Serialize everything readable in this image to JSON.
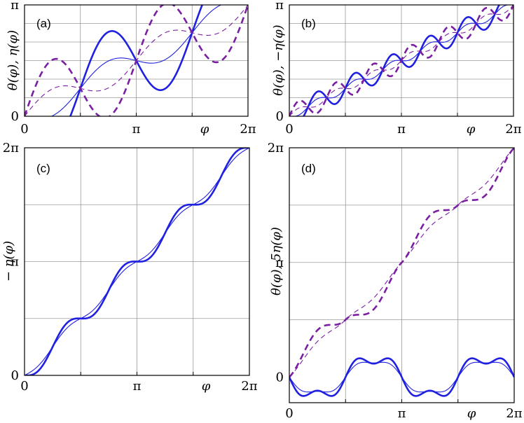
{
  "colors": {
    "blue": "#2020e0",
    "purple": "#7b1fa2",
    "grid": "#9a9a9a"
  },
  "chart_data": [
    {
      "panel": "(a)",
      "type": "line",
      "ylabel": "θ(φ), η(φ)",
      "xlabel": "φ",
      "xlim": [
        0,
        6.2832
      ],
      "ylim": [
        0,
        3.1416
      ],
      "x_ticks": [
        {
          "v": 0,
          "label": "0"
        },
        {
          "v": 3.1416,
          "label": "π"
        },
        {
          "v": 6.2832,
          "label": "2π"
        }
      ],
      "y_ticks": [
        {
          "v": 0,
          "label": "0"
        },
        {
          "v": 3.1416,
          "label": "π"
        }
      ],
      "x_grid": [
        1.5708,
        3.1416,
        4.7124
      ],
      "y_grid": [
        0.5236,
        1.0472,
        1.5708,
        2.0944,
        2.618
      ],
      "series": [
        {
          "name": "η thick",
          "color": "blue",
          "width": 2.6,
          "dash": "",
          "fn": "sin",
          "x": [
            0,
            3.1416,
            6.2832
          ],
          "y": [
            0,
            1.5708,
            3.1416
          ],
          "a": -1.2,
          "k": 2,
          "p": 0,
          "q": 0
        },
        {
          "name": "η thin",
          "color": "blue",
          "width": 1.1,
          "dash": "",
          "fn": "sin",
          "x": [
            0,
            3.1416,
            6.2832
          ],
          "y": [
            0,
            1.5708,
            3.1416
          ],
          "a": -0.38,
          "k": 2,
          "p": 0,
          "q": 0
        },
        {
          "name": "θ thick dashed",
          "color": "purple",
          "width": 2.6,
          "dash": "9,6",
          "fn": "sin",
          "x": [
            0,
            3.1416,
            6.2832
          ],
          "y": [
            0,
            1.5708,
            3.1416
          ],
          "a": 1.2,
          "k": 2,
          "p": 0,
          "q": 0
        },
        {
          "name": "θ thin dashed",
          "color": "purple",
          "width": 1.1,
          "dash": "7,5",
          "fn": "sin",
          "x": [
            0,
            3.1416,
            6.2832
          ],
          "y": [
            0,
            1.5708,
            3.1416
          ],
          "a": 0.38,
          "k": 2,
          "p": 0,
          "q": 0
        }
      ]
    },
    {
      "panel": "(b)",
      "type": "line",
      "ylabel": "θ(φ), −η(φ)",
      "xlabel": "φ",
      "xlim": [
        0,
        6.2832
      ],
      "ylim": [
        0,
        3.1416
      ],
      "x_ticks": [
        {
          "v": 0,
          "label": "0"
        },
        {
          "v": 3.1416,
          "label": "π"
        },
        {
          "v": 6.2832,
          "label": "2π"
        }
      ],
      "y_ticks": [
        {
          "v": 0,
          "label": "0"
        },
        {
          "v": 3.1416,
          "label": "π"
        }
      ],
      "x_grid": [
        1.5708,
        3.1416,
        4.7124
      ],
      "y_grid": [
        0.5236,
        1.0472,
        1.5708,
        2.0944,
        2.618
      ],
      "series": [
        {
          "name": "−η thick",
          "color": "blue",
          "width": 2.6,
          "dash": "",
          "fn": "sin",
          "x": [
            0,
            3.1416,
            6.2832
          ],
          "y": [
            0,
            1.5708,
            3.1416
          ],
          "a": -0.3,
          "k": 6,
          "p": 0,
          "q": 0
        },
        {
          "name": "−η thin",
          "color": "blue",
          "width": 1.1,
          "dash": "",
          "fn": "sin",
          "x": [
            0,
            3.1416,
            6.2832
          ],
          "y": [
            0,
            1.5708,
            3.1416
          ],
          "a": -0.1,
          "k": 6,
          "p": 0,
          "q": 0
        },
        {
          "name": "θ thick dashed",
          "color": "purple",
          "width": 2.6,
          "dash": "9,6",
          "fn": "sin",
          "x": [
            0,
            3.1416,
            6.2832
          ],
          "y": [
            0,
            1.5708,
            3.1416
          ],
          "a": 0.3,
          "k": 6,
          "p": 0,
          "q": 0
        },
        {
          "name": "θ thin dashed",
          "color": "purple",
          "width": 1.1,
          "dash": "7,5",
          "fn": "sin",
          "x": [
            0,
            3.1416,
            6.2832
          ],
          "y": [
            0,
            1.5708,
            3.1416
          ],
          "a": 0.1,
          "k": 6,
          "p": 0,
          "q": 0
        }
      ]
    },
    {
      "panel": "(c)",
      "type": "line",
      "ylabel": "− η(φ)",
      "xlabel": "φ",
      "xlim": [
        0,
        6.2832
      ],
      "ylim": [
        0,
        6.2832
      ],
      "x_ticks": [
        {
          "v": 0,
          "label": "0"
        },
        {
          "v": 3.1416,
          "label": "π"
        },
        {
          "v": 6.2832,
          "label": "2π"
        }
      ],
      "y_ticks": [
        {
          "v": 0,
          "label": "0"
        },
        {
          "v": 3.1416,
          "label": "π"
        },
        {
          "v": 6.2832,
          "label": "2π"
        }
      ],
      "x_grid": [
        1.5708,
        3.1416,
        4.7124
      ],
      "y_grid": [
        1.5708,
        3.1416,
        4.7124
      ],
      "series": [
        {
          "name": "−η thick",
          "color": "blue",
          "width": 2.6,
          "dash": "",
          "fn": "sin",
          "x": [
            0,
            3.1416,
            6.2832
          ],
          "y": [
            0,
            3.1416,
            6.2832
          ],
          "a": -0.26,
          "k": 4,
          "p": 0,
          "q": 0
        },
        {
          "name": "−η thin",
          "color": "blue",
          "width": 1.1,
          "dash": "",
          "fn": "sin",
          "x": [
            0,
            3.1416,
            6.2832
          ],
          "y": [
            0,
            3.1416,
            6.2832
          ],
          "a": -0.12,
          "k": 4,
          "p": 0,
          "q": 0
        }
      ]
    },
    {
      "panel": "(d)",
      "type": "line",
      "ylabel": "θ(φ), 5η(φ)",
      "xlabel": "φ",
      "xlim": [
        0,
        6.2832
      ],
      "ylim": [
        -0.7,
        6.2832
      ],
      "x_ticks": [
        {
          "v": 0,
          "label": "0"
        },
        {
          "v": 3.1416,
          "label": "π"
        },
        {
          "v": 6.2832,
          "label": "2π"
        }
      ],
      "y_ticks": [
        {
          "v": 0,
          "label": "0"
        },
        {
          "v": 3.1416,
          "label": "π"
        },
        {
          "v": 6.2832,
          "label": "2π"
        }
      ],
      "x_grid": [
        1.5708,
        3.1416,
        4.7124
      ],
      "y_grid": [
        1.5708,
        3.1416,
        4.7124
      ],
      "series": [
        {
          "name": "θ thick dashed",
          "color": "purple",
          "width": 2.6,
          "dash": "9,6",
          "fn": "theta_d",
          "x": [
            0,
            3.1416,
            6.2832
          ],
          "y": [
            0,
            3.1416,
            6.2832
          ],
          "a": 0.5,
          "k": 4,
          "p": 0.95,
          "q": 0
        },
        {
          "name": "θ thin dashed",
          "color": "purple",
          "width": 1.1,
          "dash": "7,5",
          "fn": "theta_d",
          "x": [
            0,
            3.1416,
            6.2832
          ],
          "y": [
            0,
            3.1416,
            6.2832
          ],
          "a": 0.19,
          "k": 4,
          "p": 0.95,
          "q": 0
        },
        {
          "name": "5η thick",
          "color": "blue",
          "width": 2.6,
          "dash": "",
          "fn": "eta_d",
          "x": [
            0,
            3.1416,
            6.2832
          ],
          "y": [
            0,
            0,
            0
          ],
          "a": 0.55,
          "k": 4,
          "p": 0,
          "q": 0.18
        },
        {
          "name": "5η thin",
          "color": "blue",
          "width": 1.1,
          "dash": "",
          "fn": "eta_d",
          "x": [
            0,
            3.1416,
            6.2832
          ],
          "y": [
            0,
            0,
            0
          ],
          "a": 0.47,
          "k": 4,
          "p": 0,
          "q": 0.08
        }
      ]
    }
  ]
}
